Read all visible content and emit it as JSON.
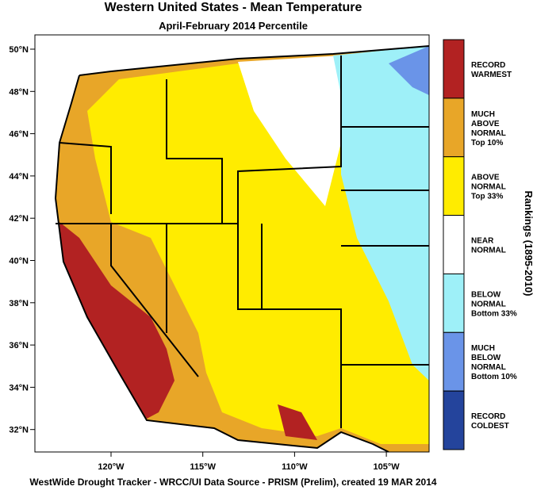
{
  "header": {
    "title": "Western United States - Mean Temperature",
    "subtitle": "April-February 2014 Percentile"
  },
  "map": {
    "lat_labels": [
      "50°N",
      "48°N",
      "46°N",
      "44°N",
      "42°N",
      "40°N",
      "38°N",
      "36°N",
      "34°N",
      "32°N"
    ],
    "lon_labels": [
      "120°W",
      "115°W",
      "110°W",
      "105°W"
    ]
  },
  "legend": {
    "title": "Rankings (1895-2010)",
    "items": [
      {
        "lines": [
          "RECORD",
          "WARMEST"
        ],
        "color": "#b22222"
      },
      {
        "lines": [
          "MUCH",
          "ABOVE",
          "NORMAL",
          "Top 10%"
        ],
        "color": "#e8a628"
      },
      {
        "lines": [
          "ABOVE",
          "NORMAL",
          "Top 33%"
        ],
        "color": "#ffec00"
      },
      {
        "lines": [
          "NEAR",
          "NORMAL"
        ],
        "color": "#ffffff"
      },
      {
        "lines": [
          "BELOW",
          "NORMAL",
          "Bottom 33%"
        ],
        "color": "#9ef0f8"
      },
      {
        "lines": [
          "MUCH",
          "BELOW",
          "NORMAL",
          "Bottom 10%"
        ],
        "color": "#6a94e8"
      },
      {
        "lines": [
          "RECORD",
          "COLDEST"
        ],
        "color": "#24449c"
      }
    ]
  },
  "footer": "WestWide Drought Tracker - WRCC/UI  Data Source - PRISM (Prelim), created 19 MAR 2014"
}
